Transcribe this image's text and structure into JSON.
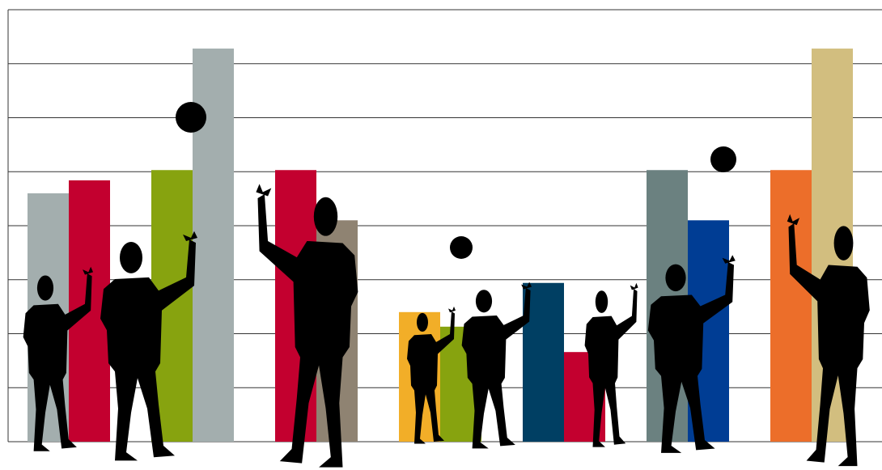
{
  "chart_data": {
    "type": "bar",
    "categories": [
      null,
      null,
      null,
      null,
      null,
      null,
      null,
      null,
      null,
      null,
      null,
      null,
      null,
      null,
      null,
      null,
      null,
      null,
      null,
      null
    ],
    "values": [
      4.6,
      4.84,
      null,
      5.03,
      7.28,
      null,
      5.03,
      4.1,
      null,
      2.4,
      2.13,
      null,
      2.94,
      1.66,
      null,
      5.03,
      4.1,
      null,
      5.03,
      7.28
    ],
    "colors": [
      "#a3aeae",
      "#c3002f",
      null,
      "#87a30f",
      "#a3aeae",
      null,
      "#c3002f",
      "#8f8372",
      null,
      "#f2ae28",
      "#87a30f",
      null,
      "#003f63",
      "#c3002f",
      null,
      "#6b8180",
      "#003d94",
      null,
      "#ec6e2a",
      "#d2be7f"
    ],
    "ylim": [
      0,
      8
    ],
    "yticks": [
      0,
      1,
      2,
      3,
      4,
      5,
      6,
      7,
      8
    ],
    "grid": true
  }
}
